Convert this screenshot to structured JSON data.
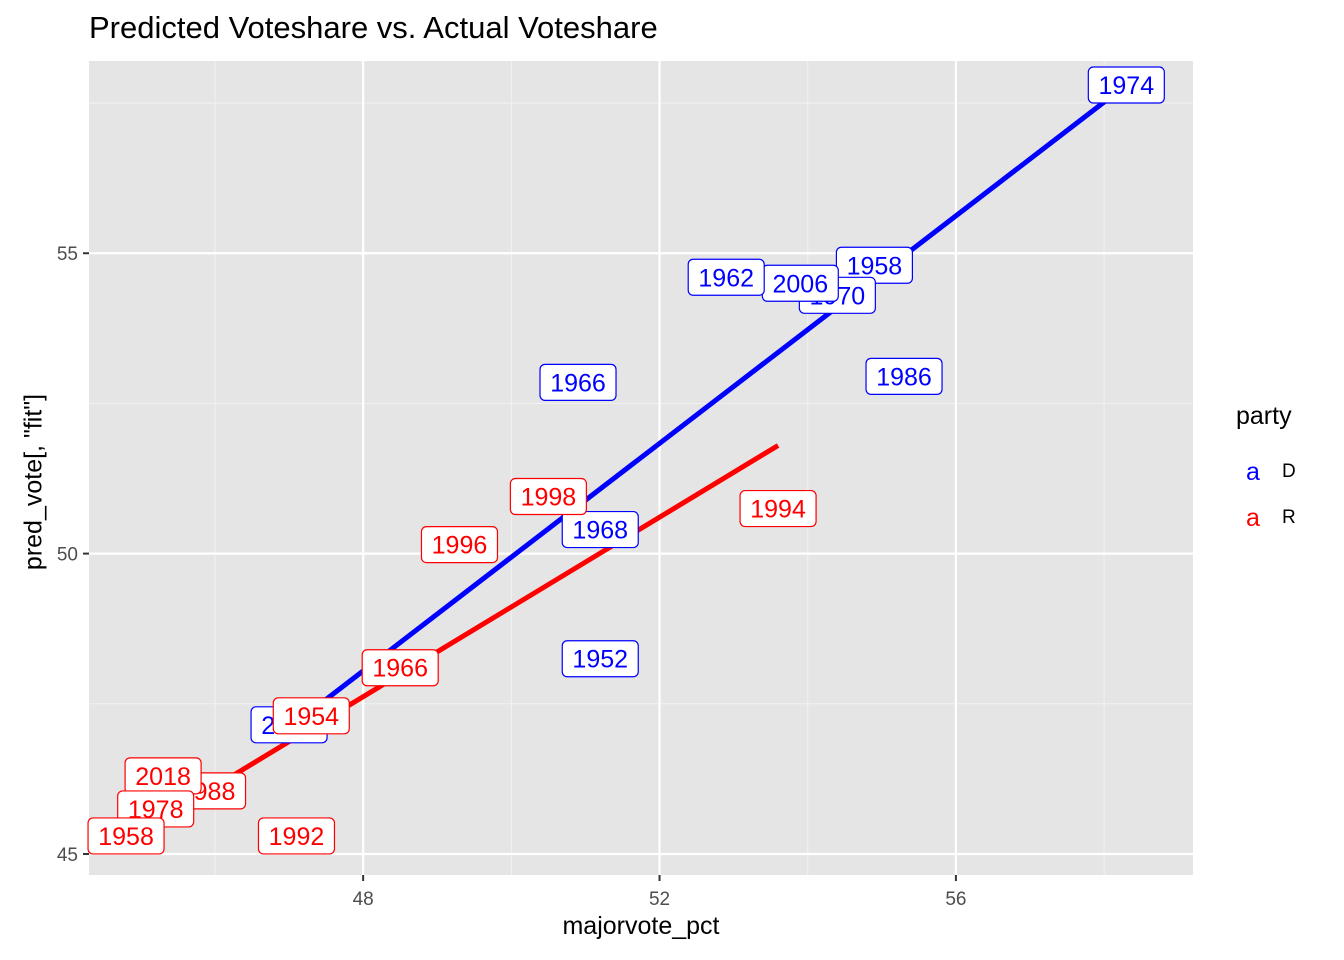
{
  "chart_data": {
    "type": "scatter",
    "title": "Predicted Voteshare vs. Actual Voteshare",
    "xlabel": "majorvote_pct",
    "ylabel": "pred_vote[, \"fit\"]",
    "xlim": [
      44.3,
      59.2
    ],
    "ylim": [
      44.65,
      58.2
    ],
    "x_major_ticks": [
      48,
      52,
      56
    ],
    "x_minor_ticks": [
      46,
      50,
      54,
      58
    ],
    "y_major_ticks": [
      45,
      50,
      55
    ],
    "y_minor_ticks": [
      47.5,
      52.5,
      57.5
    ],
    "grid": true,
    "legend": {
      "title": "party",
      "position": "right",
      "key_glyph": "a",
      "entries": [
        {
          "label": "D",
          "color": "#0000ff"
        },
        {
          "label": "R",
          "color": "#ff0000"
        }
      ]
    },
    "series": [
      {
        "name": "D",
        "color": "#0000ff",
        "points": [
          {
            "x": 58.3,
            "y": 57.8,
            "label": "1974"
          },
          {
            "x": 54.9,
            "y": 54.8,
            "label": "1958"
          },
          {
            "x": 54.4,
            "y": 54.3,
            "label": "1970"
          },
          {
            "x": 53.9,
            "y": 54.5,
            "label": "2006"
          },
          {
            "x": 52.9,
            "y": 54.6,
            "label": "1962"
          },
          {
            "x": 55.3,
            "y": 52.95,
            "label": "1986"
          },
          {
            "x": 50.9,
            "y": 52.85,
            "label": "1966"
          },
          {
            "x": 51.2,
            "y": 50.4,
            "label": "1968"
          },
          {
            "x": 51.2,
            "y": 48.25,
            "label": "1952"
          },
          {
            "x": 47.0,
            "y": 47.15,
            "label": "2008"
          }
        ],
        "fit_line": [
          [
            47.0,
            47.1
          ],
          [
            58.3,
            57.8
          ]
        ]
      },
      {
        "name": "R",
        "color": "#ff0000",
        "points": [
          {
            "x": 50.5,
            "y": 50.95,
            "label": "1998"
          },
          {
            "x": 49.3,
            "y": 50.15,
            "label": "1996"
          },
          {
            "x": 53.6,
            "y": 50.75,
            "label": "1994"
          },
          {
            "x": 48.5,
            "y": 48.1,
            "label": "1966"
          },
          {
            "x": 47.3,
            "y": 47.3,
            "label": "1954"
          },
          {
            "x": 45.9,
            "y": 46.05,
            "label": "1988"
          },
          {
            "x": 45.3,
            "y": 46.3,
            "label": "2018"
          },
          {
            "x": 45.2,
            "y": 45.75,
            "label": "1978"
          },
          {
            "x": 44.8,
            "y": 45.3,
            "label": "1958"
          },
          {
            "x": 47.1,
            "y": 45.3,
            "label": "1992"
          }
        ],
        "fit_line": [
          [
            45.9,
            46.05
          ],
          [
            53.6,
            51.8
          ]
        ]
      }
    ]
  }
}
